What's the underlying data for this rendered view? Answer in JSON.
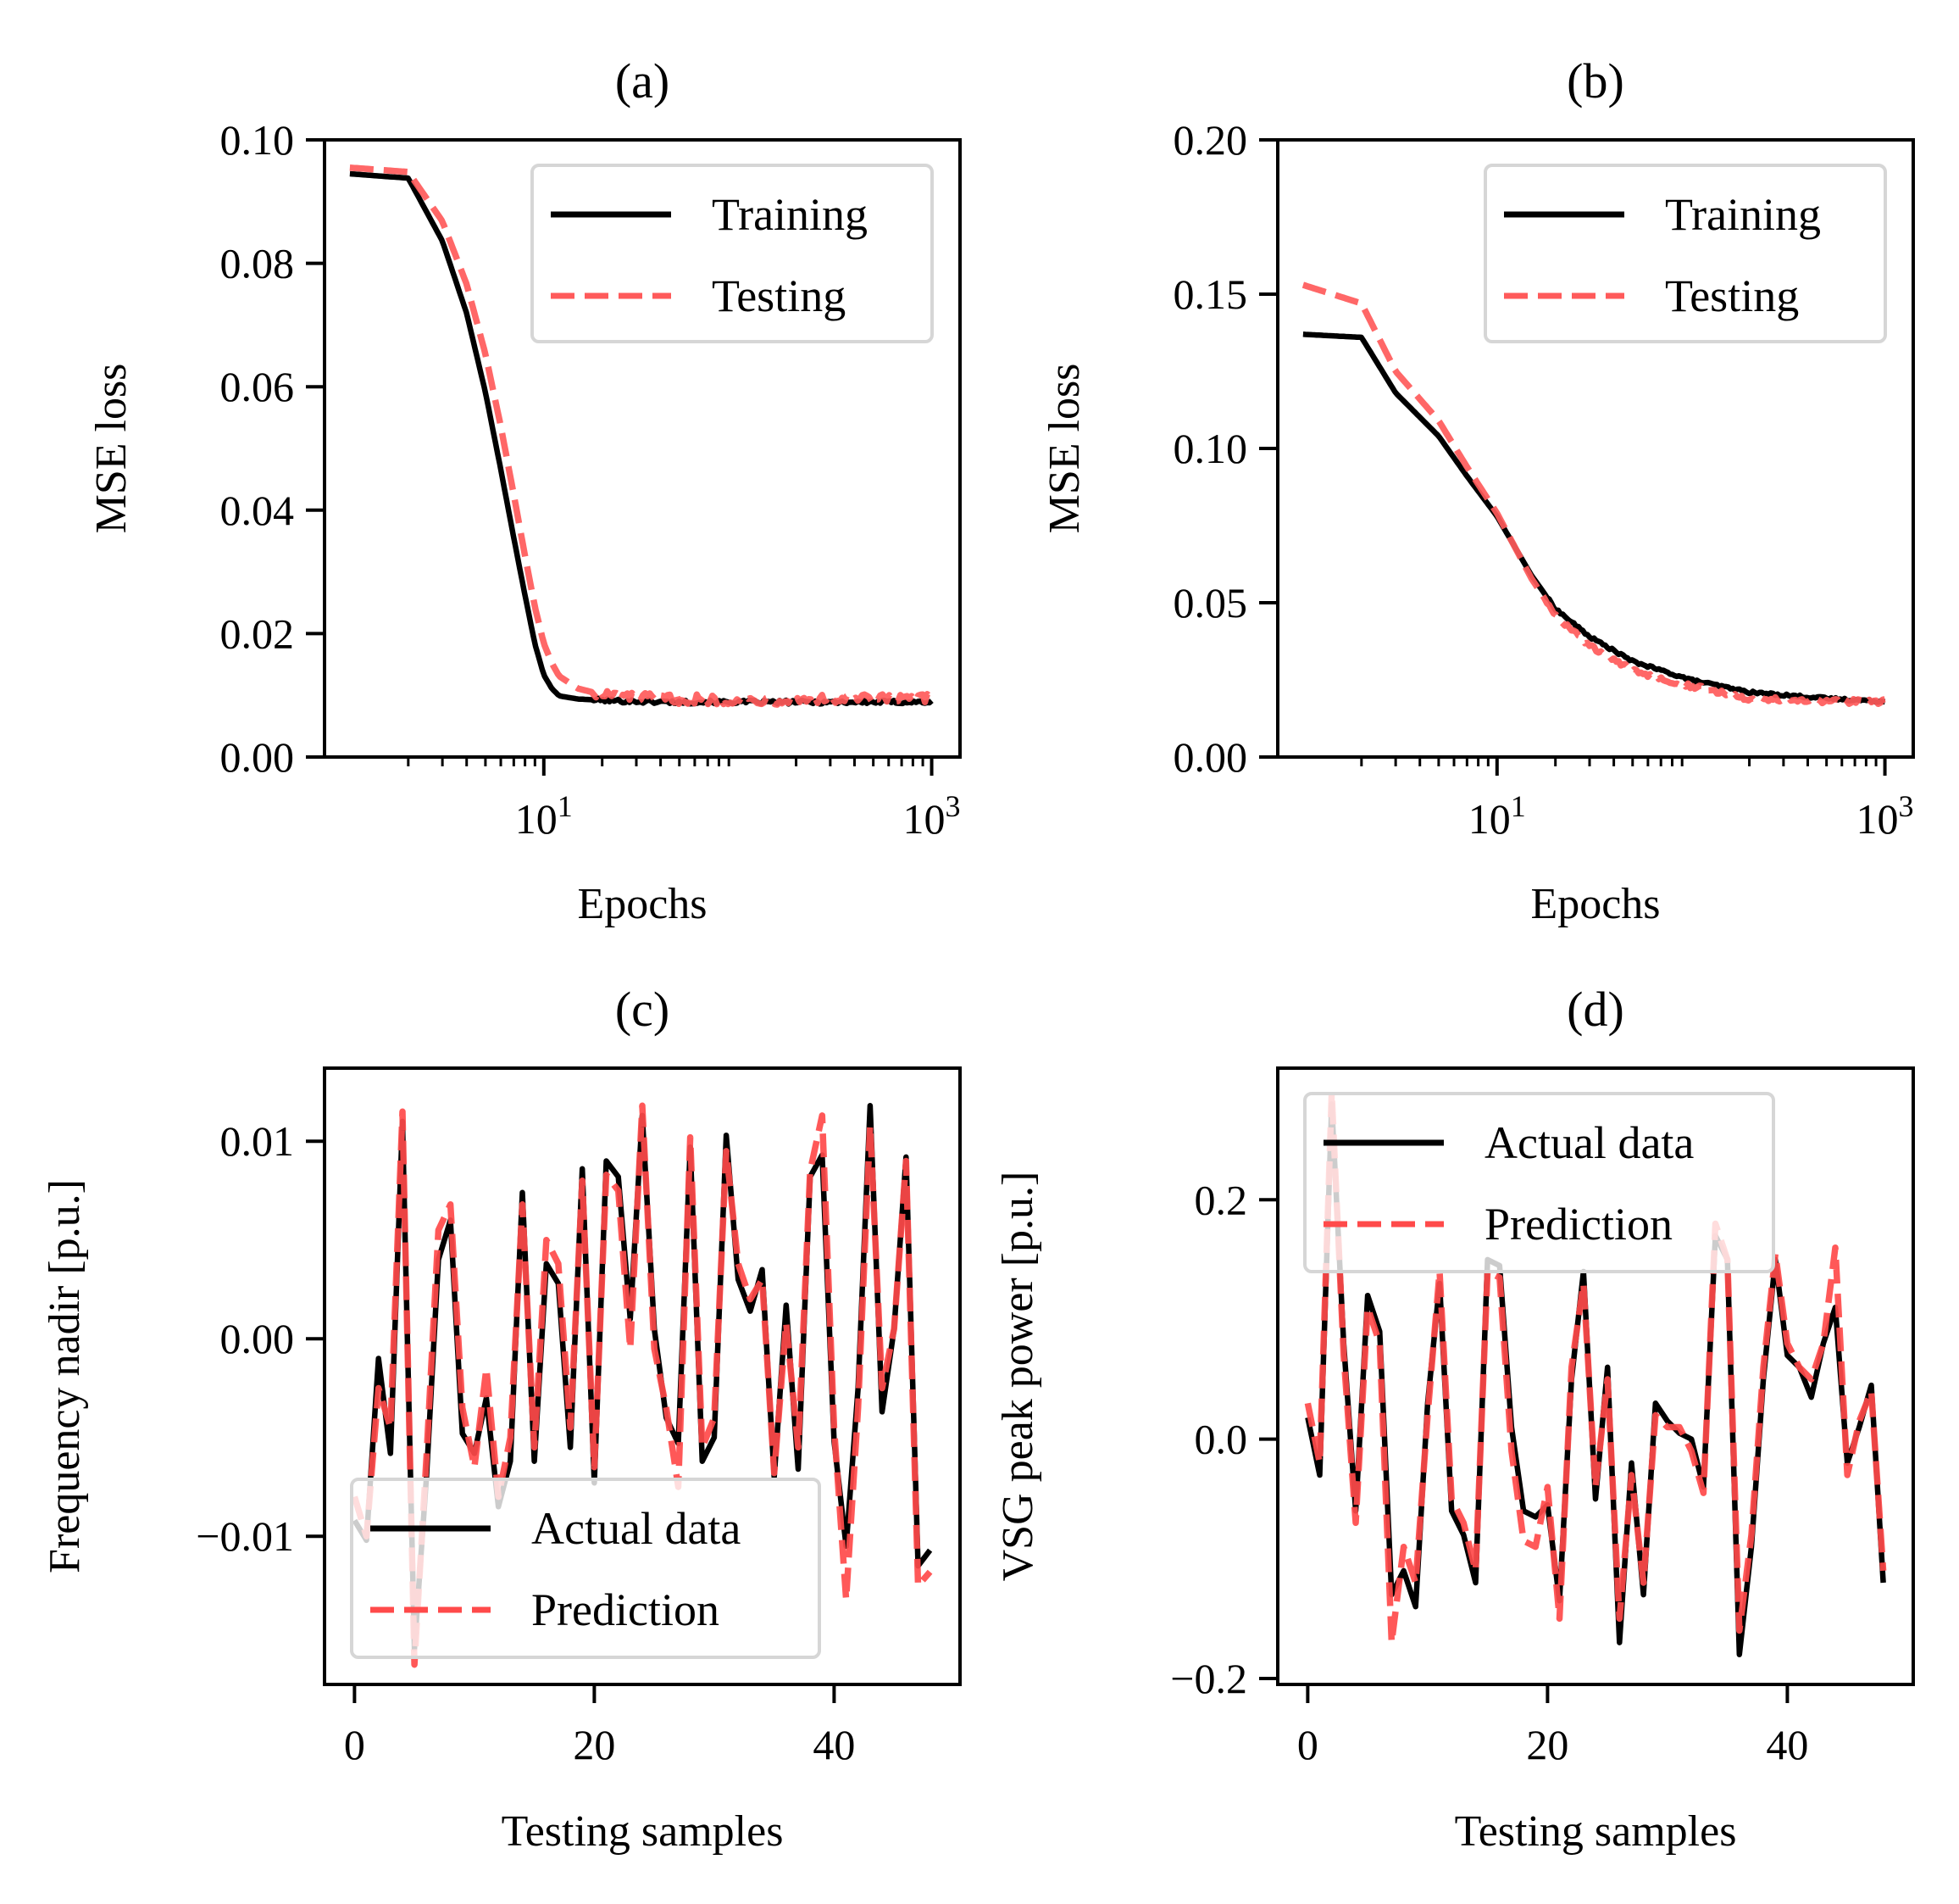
{
  "chart_data": [
    {
      "id": "a",
      "type": "line",
      "title": "(a)",
      "xlabel": "Epochs",
      "ylabel": "MSE loss",
      "xscale": "log",
      "xlim": [
        0.74,
        1400
      ],
      "ylim": [
        0,
        0.1
      ],
      "yticks": [
        0.0,
        0.02,
        0.04,
        0.06,
        0.08,
        0.1
      ],
      "ytick_labels": [
        "0.00",
        "0.02",
        "0.04",
        "0.06",
        "0.08",
        "0.10"
      ],
      "xticks": [
        {
          "value": 10,
          "base": "10",
          "exp": "1"
        },
        {
          "value": 1000,
          "base": "10",
          "exp": "3"
        }
      ],
      "legend_position": "upper right",
      "grid": false,
      "series": [
        {
          "name": "Training",
          "color": "#000000",
          "dash": "solid",
          "x": [
            1,
            2,
            3,
            4,
            5,
            6,
            7,
            8,
            9,
            10,
            11,
            12,
            15,
            20,
            30,
            50,
            100,
            200,
            500,
            1000
          ],
          "y": [
            0.0945,
            0.0938,
            0.0836,
            0.0719,
            0.0591,
            0.0466,
            0.0355,
            0.0262,
            0.0183,
            0.0133,
            0.0111,
            0.0099,
            0.0094,
            0.0092,
            0.009,
            0.0089,
            0.0089,
            0.0089,
            0.0089,
            0.0089
          ],
          "noise": 0.0003
        },
        {
          "name": "Testing",
          "color": "#ff5a5a",
          "dash": "dashed",
          "x": [
            1,
            2,
            3,
            4,
            5,
            6,
            7,
            8,
            9,
            10,
            11,
            12,
            15,
            20,
            30,
            50,
            100,
            200,
            500,
            1000
          ],
          "y": [
            0.0955,
            0.0948,
            0.0868,
            0.0766,
            0.0653,
            0.0536,
            0.0425,
            0.0326,
            0.0243,
            0.0184,
            0.0152,
            0.0131,
            0.0111,
            0.0101,
            0.0096,
            0.0094,
            0.0093,
            0.0093,
            0.0094,
            0.0094
          ],
          "noise": 0.0008
        }
      ]
    },
    {
      "id": "b",
      "type": "line",
      "title": "(b)",
      "xlabel": "Epochs",
      "ylabel": "MSE loss",
      "xscale": "log",
      "xlim": [
        0.74,
        1400
      ],
      "ylim": [
        0,
        0.2
      ],
      "yticks": [
        0.0,
        0.05,
        0.1,
        0.15,
        0.2
      ],
      "ytick_labels": [
        "0.00",
        "0.05",
        "0.10",
        "0.15",
        "0.20"
      ],
      "xticks": [
        {
          "value": 10,
          "base": "10",
          "exp": "1"
        },
        {
          "value": 1000,
          "base": "10",
          "exp": "3"
        }
      ],
      "legend_position": "upper right",
      "grid": false,
      "series": [
        {
          "name": "Training",
          "color": "#000000",
          "dash": "solid",
          "x": [
            1,
            2,
            3,
            5,
            7,
            10,
            15,
            20,
            30,
            50,
            100,
            200,
            500,
            1000
          ],
          "y": [
            0.137,
            0.136,
            0.118,
            0.104,
            0.091,
            0.078,
            0.059,
            0.048,
            0.039,
            0.031,
            0.025,
            0.021,
            0.019,
            0.018
          ],
          "noise": 0.0004
        },
        {
          "name": "Testing",
          "color": "#ff5a5a",
          "dash": "dashed",
          "x": [
            1,
            2,
            3,
            5,
            7,
            10,
            15,
            20,
            30,
            50,
            100,
            200,
            500,
            1000
          ],
          "y": [
            0.153,
            0.147,
            0.125,
            0.109,
            0.094,
            0.079,
            0.058,
            0.046,
            0.036,
            0.028,
            0.023,
            0.019,
            0.018,
            0.018
          ],
          "noise": 0.0008
        }
      ]
    },
    {
      "id": "c",
      "type": "line",
      "title": "(c)",
      "xlabel": "Testing samples",
      "ylabel": "Frequency nadir [p.u.]",
      "xscale": "linear",
      "xlim": [
        -2.5,
        50.5
      ],
      "ylim": [
        -0.0175,
        0.0137
      ],
      "yticks": [
        -0.01,
        0.0,
        0.01
      ],
      "ytick_labels": [
        "−0.01",
        "0.00",
        "0.01"
      ],
      "xticks": [
        {
          "value": 0,
          "label": "0"
        },
        {
          "value": 20,
          "label": "20"
        },
        {
          "value": 40,
          "label": "40"
        }
      ],
      "legend_position": "lower left",
      "grid": false,
      "series": [
        {
          "name": "Actual data",
          "color": "#000000",
          "dash": "solid",
          "x": [
            0,
            1,
            2,
            3,
            4,
            5,
            6,
            7,
            8,
            9,
            10,
            11,
            12,
            13,
            14,
            15,
            16,
            17,
            18,
            19,
            20,
            21,
            22,
            23,
            24,
            25,
            26,
            27,
            28,
            29,
            30,
            31,
            32,
            33,
            34,
            35,
            36,
            37,
            38,
            39,
            40,
            41,
            42,
            43,
            44,
            45,
            46,
            47,
            48
          ],
          "y": [
            -0.0092,
            -0.0102,
            -0.001,
            -0.0058,
            0.011,
            -0.0157,
            -0.007,
            0.004,
            0.006,
            -0.0048,
            -0.0058,
            -0.003,
            -0.0085,
            -0.0062,
            0.0074,
            -0.0062,
            0.0038,
            0.0028,
            -0.0055,
            0.0086,
            -0.0073,
            0.009,
            0.0082,
            0.001,
            0.0113,
            0.0005,
            -0.004,
            -0.0053,
            0.0097,
            -0.0062,
            -0.005,
            0.0103,
            0.003,
            0.0014,
            0.0035,
            -0.007,
            0.0017,
            -0.0066,
            0.0082,
            0.0093,
            -0.0052,
            -0.0105,
            -0.0025,
            0.0118,
            -0.0037,
            0.0005,
            0.0092,
            -0.0115,
            -0.0107
          ]
        },
        {
          "name": "Prediction",
          "color": "#ff4a4a",
          "dash": "dashed",
          "x": [
            0,
            1,
            2,
            3,
            4,
            5,
            6,
            7,
            8,
            9,
            10,
            11,
            12,
            13,
            14,
            15,
            16,
            17,
            18,
            19,
            20,
            21,
            22,
            23,
            24,
            25,
            26,
            27,
            28,
            29,
            30,
            31,
            32,
            33,
            34,
            35,
            36,
            37,
            38,
            39,
            40,
            41,
            42,
            43,
            44,
            45,
            46,
            47,
            48
          ],
          "y": [
            -0.008,
            -0.01,
            -0.0025,
            -0.0045,
            0.0115,
            -0.0165,
            -0.006,
            0.0055,
            0.0068,
            -0.0035,
            -0.0065,
            -0.0015,
            -0.008,
            -0.005,
            0.0068,
            -0.0055,
            0.005,
            0.0038,
            -0.0045,
            0.008,
            -0.0065,
            0.0083,
            0.0075,
            -0.0005,
            0.0118,
            -0.0005,
            -0.0035,
            -0.0075,
            0.0102,
            -0.0055,
            -0.004,
            0.0095,
            0.0038,
            0.002,
            0.003,
            -0.0068,
            0.0008,
            -0.0055,
            0.0085,
            0.0113,
            -0.0045,
            -0.0132,
            -0.0035,
            0.0108,
            -0.0025,
            0.0005,
            0.009,
            -0.0125,
            -0.0118
          ]
        }
      ]
    },
    {
      "id": "d",
      "type": "line",
      "title": "(d)",
      "xlabel": "Testing samples",
      "ylabel": "VSG peak power [p.u.]",
      "xscale": "linear",
      "xlim": [
        -2.5,
        50.5
      ],
      "ylim": [
        -0.205,
        0.31
      ],
      "yticks": [
        -0.2,
        0.0,
        0.2
      ],
      "ytick_labels": [
        "−0.2",
        "0.0",
        "0.2"
      ],
      "xticks": [
        {
          "value": 0,
          "label": "0"
        },
        {
          "value": 20,
          "label": "20"
        },
        {
          "value": 40,
          "label": "40"
        }
      ],
      "legend_position": "upper left",
      "grid": false,
      "series": [
        {
          "name": "Actual data",
          "color": "#000000",
          "dash": "solid",
          "x": [
            0,
            1,
            2,
            3,
            4,
            5,
            6,
            7,
            8,
            9,
            10,
            11,
            12,
            13,
            14,
            15,
            16,
            17,
            18,
            19,
            20,
            21,
            22,
            23,
            24,
            25,
            26,
            27,
            28,
            29,
            30,
            31,
            32,
            33,
            34,
            35,
            36,
            37,
            38,
            39,
            40,
            41,
            42,
            43,
            44,
            45,
            46,
            47,
            48
          ],
          "y": [
            0.018,
            -0.03,
            0.28,
            0.08,
            -0.06,
            0.12,
            0.09,
            -0.13,
            -0.11,
            -0.14,
            0.03,
            0.13,
            -0.06,
            -0.08,
            -0.12,
            0.15,
            0.145,
            0.01,
            -0.06,
            -0.065,
            -0.055,
            -0.135,
            0.05,
            0.14,
            -0.05,
            0.06,
            -0.17,
            -0.02,
            -0.13,
            0.03,
            0.015,
            0.005,
            0.0,
            -0.04,
            0.17,
            0.15,
            -0.18,
            -0.09,
            0.05,
            0.15,
            0.07,
            0.06,
            0.035,
            0.08,
            0.11,
            -0.02,
            0.01,
            0.045,
            -0.12
          ]
        },
        {
          "name": "Prediction",
          "color": "#ff4a4a",
          "dash": "dashed",
          "x": [
            0,
            1,
            2,
            3,
            4,
            5,
            6,
            7,
            8,
            9,
            10,
            11,
            12,
            13,
            14,
            15,
            16,
            17,
            18,
            19,
            20,
            21,
            22,
            23,
            24,
            25,
            26,
            27,
            28,
            29,
            30,
            31,
            32,
            33,
            34,
            35,
            36,
            37,
            38,
            39,
            40,
            41,
            42,
            43,
            44,
            45,
            46,
            47,
            48
          ],
          "y": [
            0.03,
            -0.02,
            0.29,
            0.07,
            -0.07,
            0.11,
            0.08,
            -0.17,
            -0.09,
            -0.12,
            0.02,
            0.14,
            -0.05,
            -0.07,
            -0.11,
            0.14,
            0.135,
            -0.01,
            -0.085,
            -0.09,
            -0.04,
            -0.15,
            0.06,
            0.13,
            -0.04,
            0.05,
            -0.15,
            -0.03,
            -0.12,
            0.02,
            0.01,
            0.01,
            -0.01,
            -0.045,
            0.18,
            0.15,
            -0.16,
            -0.08,
            0.06,
            0.155,
            0.08,
            0.06,
            0.05,
            0.08,
            0.16,
            -0.03,
            0.015,
            0.04,
            -0.11
          ]
        }
      ]
    }
  ]
}
